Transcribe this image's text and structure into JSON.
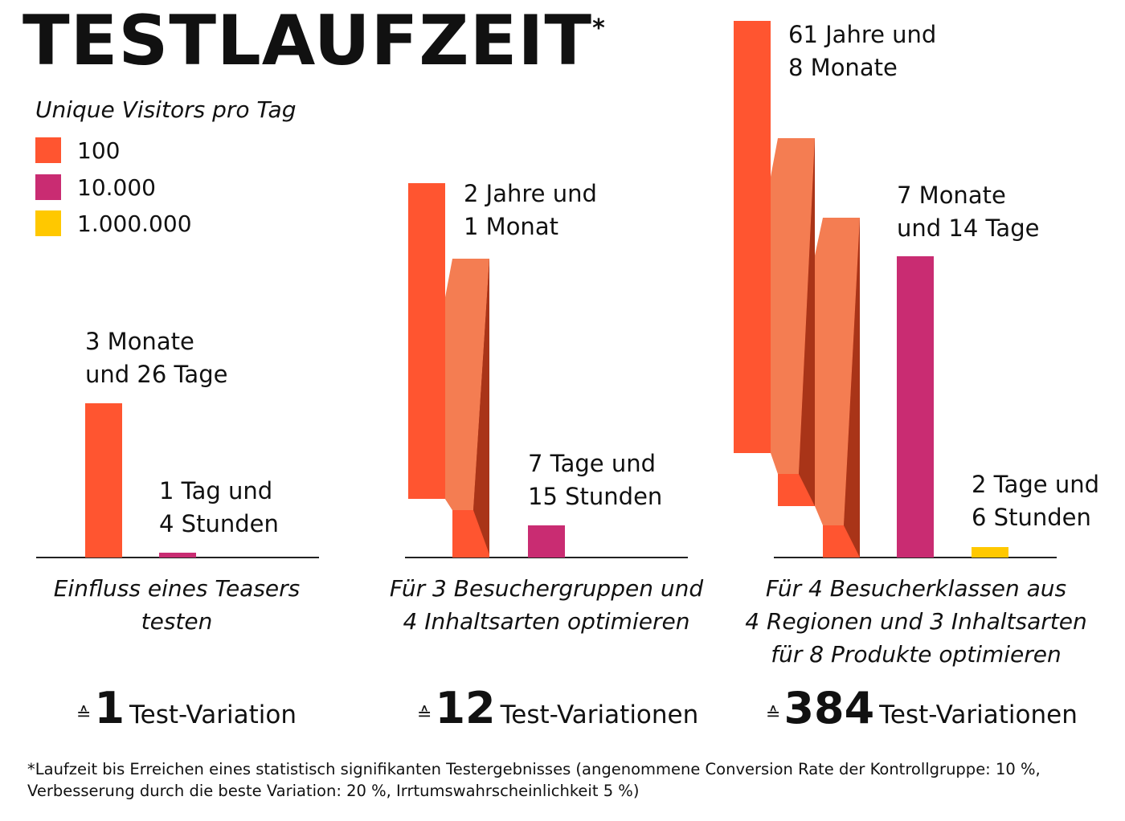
{
  "title": "TESTLAUFZEIT",
  "title_mark": "*",
  "legend": {
    "title": "Unique Visitors pro Tag",
    "items": [
      {
        "label": "100",
        "color": "#ff5530"
      },
      {
        "label": "10.000",
        "color": "#c92c72"
      },
      {
        "label": "1.000.000",
        "color": "#ffc800"
      }
    ]
  },
  "chart_data": [
    {
      "type": "bar",
      "caption": "Einfluss eines Teasers testen",
      "variation_count": "1",
      "variation_label": "Test-Variation",
      "series": [
        {
          "name": "100",
          "value_label": "3 Monate\nund 26 Tage",
          "value_days": 117
        },
        {
          "name": "10.000",
          "value_label": "1 Tag und\n4 Stunden",
          "value_days": 1.17
        }
      ]
    },
    {
      "type": "bar",
      "caption": "Für 3 Besuchergruppen und\n4 Inhaltsarten optimieren",
      "variation_count": "12",
      "variation_label": "Test-Variationen",
      "series": [
        {
          "name": "100",
          "value_label": "2 Jahre und\n1 Monat",
          "value_days": 760
        },
        {
          "name": "10.000",
          "value_label": "7 Tage und\n15 Stunden",
          "value_days": 7.6
        }
      ]
    },
    {
      "type": "bar",
      "caption": "Für 4 Besucherklassen aus\n4 Regionen und 3 Inhaltsarten\nfür 8 Produkte optimieren",
      "variation_count": "384",
      "variation_label": "Test-Variationen",
      "series": [
        {
          "name": "100",
          "value_label": "61 Jahre und\n8 Monate",
          "value_days": 22520
        },
        {
          "name": "10.000",
          "value_label": "7 Monate\nund  14 Tage",
          "value_days": 225
        },
        {
          "name": "1.000.000",
          "value_label": "2 Tage und\n6 Stunden",
          "value_days": 2.25
        }
      ]
    }
  ],
  "equiv_symbol": "≙",
  "footnote": "*Laufzeit bis Erreichen eines statistisch signifikanten Testergebnisses (angenommene Conversion Rate der Kontrollgruppe: 10 %,\n Verbesserung durch die beste Variation: 20 %, Irrtumswahrscheinlichkeit 5 %)"
}
